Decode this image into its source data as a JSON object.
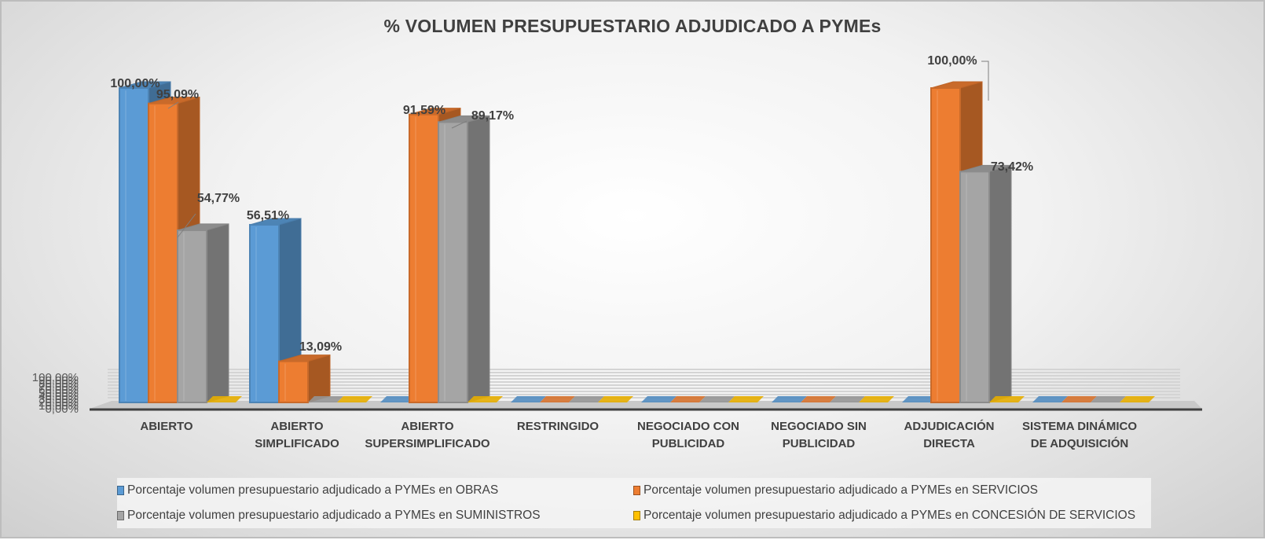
{
  "chart_data": {
    "type": "bar",
    "subtype": "3d-clustered-column",
    "title": "% VOLUMEN PRESUPUESTARIO ADJUDICADO A PYMEs",
    "xlabel": "",
    "ylabel": "",
    "ylim": [
      0,
      100
    ],
    "yticks": [
      "0,00%",
      "10,00%",
      "20,00%",
      "30,00%",
      "40,00%",
      "50,00%",
      "60,00%",
      "70,00%",
      "80,00%",
      "90,00%",
      "100,00%"
    ],
    "grid": true,
    "legend_position": "bottom",
    "categories": [
      "ABIERTO",
      "ABIERTO SIMPLIFICADO",
      "ABIERTO SUPERSIMPLIFICADO",
      "RESTRINGIDO",
      "NEGOCIADO CON PUBLICIDAD",
      "NEGOCIADO SIN PUBLICIDAD",
      "ADJUDICACIÓN DIRECTA",
      "SISTEMA DINÁMICO DE ADQUISICIÓN"
    ],
    "category_lines": [
      [
        "ABIERTO"
      ],
      [
        "ABIERTO",
        "SIMPLIFICADO"
      ],
      [
        "ABIERTO",
        "SUPERSIMPLIFICADO"
      ],
      [
        "RESTRINGIDO"
      ],
      [
        "NEGOCIADO CON",
        "PUBLICIDAD"
      ],
      [
        "NEGOCIADO SIN",
        "PUBLICIDAD"
      ],
      [
        "ADJUDICACIÓN",
        "DIRECTA"
      ],
      [
        "SISTEMA DINÁMICO",
        "DE ADQUISICIÓN"
      ]
    ],
    "series": [
      {
        "name": "Porcentaje volumen presupuestario adjudicado a PYMEs en OBRAS",
        "color": "#5B9BD5",
        "values": [
          100.0,
          56.51,
          0,
          0,
          0,
          0,
          0,
          0
        ],
        "labels": [
          "100,00%",
          "56,51%",
          "",
          "",
          "",
          "",
          "",
          ""
        ]
      },
      {
        "name": "Porcentaje volumen presupuestario adjudicado a PYMEs en SERVICIOS",
        "color": "#ED7D31",
        "values": [
          95.09,
          13.09,
          91.59,
          0,
          0,
          0,
          100.0,
          0
        ],
        "labels": [
          "95,09%",
          "13,09%",
          "91,59%",
          "",
          "",
          "",
          "100,00%",
          ""
        ]
      },
      {
        "name": "Porcentaje volumen presupuestario adjudicado a PYMEs en SUMINISTROS",
        "color": "#A5A5A5",
        "values": [
          54.77,
          0,
          89.17,
          0,
          0,
          0,
          73.42,
          0
        ],
        "labels": [
          "54,77%",
          "",
          "89,17%",
          "",
          "",
          "",
          "73,42%",
          ""
        ]
      },
      {
        "name": "Porcentaje volumen presupuestario adjudicado a PYMEs en CONCESIÓN DE SERVICIOS",
        "color": "#FFC000",
        "values": [
          0,
          0,
          0,
          0,
          0,
          0,
          0,
          0
        ],
        "labels": [
          "",
          "",
          "",
          "",
          "",
          "",
          "",
          ""
        ]
      }
    ]
  },
  "legend": {
    "items": [
      {
        "label": "Porcentaje volumen presupuestario adjudicado a PYMEs en OBRAS",
        "color": "#5B9BD5"
      },
      {
        "label": "Porcentaje volumen presupuestario adjudicado a PYMEs en SERVICIOS",
        "color": "#ED7D31"
      },
      {
        "label": "Porcentaje volumen presupuestario adjudicado a PYMEs en SUMINISTROS",
        "color": "#A5A5A5"
      },
      {
        "label": "Porcentaje volumen presupuestario adjudicado a PYMEs en CONCESIÓN DE SERVICIOS",
        "color": "#FFC000"
      }
    ]
  }
}
